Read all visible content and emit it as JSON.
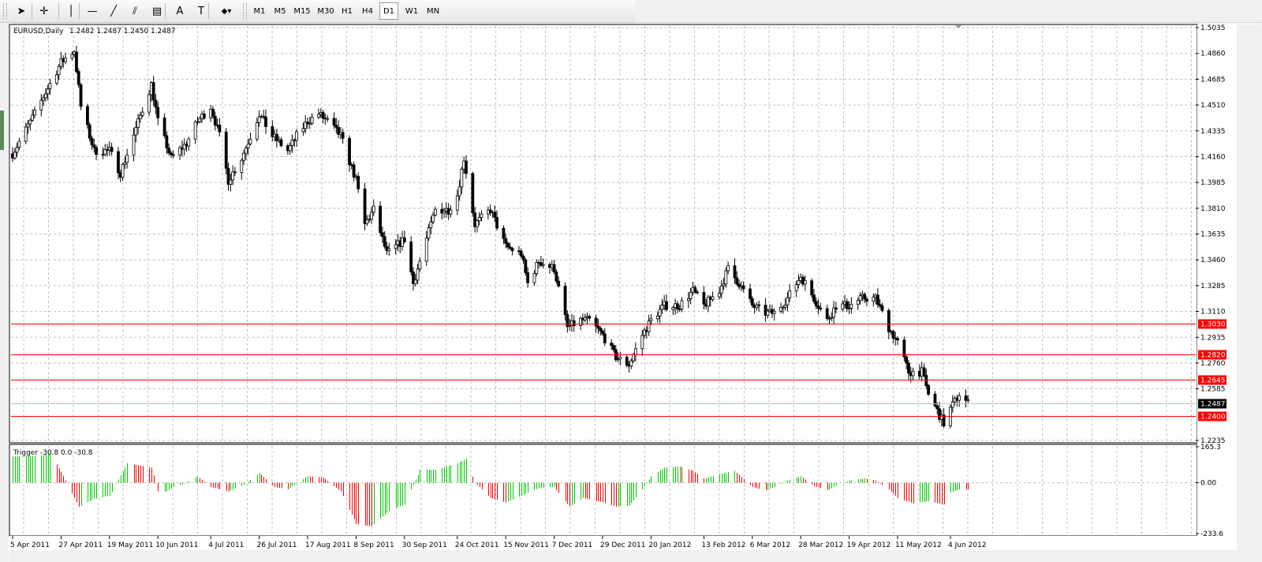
{
  "toolbar": {
    "tools": [
      {
        "name": "cursor-arrow-icon",
        "glyph": "➤"
      },
      {
        "name": "crosshair-icon",
        "glyph": "✛"
      },
      {
        "name": "vertical-line-icon",
        "glyph": "│"
      },
      {
        "name": "horizontal-line-icon",
        "glyph": "—"
      },
      {
        "name": "trendline-icon",
        "glyph": "╱"
      },
      {
        "name": "equidistant-channel-icon",
        "glyph": "⫽"
      },
      {
        "name": "fibonacci-icon",
        "glyph": "▤"
      },
      {
        "name": "text-icon",
        "glyph": "A"
      },
      {
        "name": "text-label-icon",
        "glyph": "T"
      },
      {
        "name": "shapes-dropdown-icon",
        "glyph": "◆▾"
      }
    ],
    "timeframes": [
      "M1",
      "M5",
      "M15",
      "M30",
      "H1",
      "H4",
      "D1",
      "W1",
      "MN"
    ],
    "active_timeframe": "D1"
  },
  "main_info": {
    "symbol": "EURUSD,Daily",
    "ohlc": "1.2482 1.2487 1.2450 1.2487"
  },
  "sub_info": {
    "label": "Trigger -30.8 0.0 -30.8"
  },
  "price_axis": [
    "1.5035",
    "1.4860",
    "1.4685",
    "1.4510",
    "1.4335",
    "1.4160",
    "1.3985",
    "1.3810",
    "1.3635",
    "1.3460",
    "1.3285",
    "1.3110",
    "1.2935",
    "1.2760",
    "1.2585",
    "1.2235"
  ],
  "level_lines": [
    {
      "label": "1.3030",
      "price": 1.303
    },
    {
      "label": "1.2820",
      "price": 1.282
    },
    {
      "label": "1.2645",
      "price": 1.2645
    },
    {
      "label": "1.2400",
      "price": 1.24
    }
  ],
  "current_price": {
    "label": "1.2487",
    "price": 1.2487
  },
  "indicator_axis": [
    "165.3",
    "0.00",
    "-233.6"
  ],
  "date_axis": [
    "5 Apr 2011",
    "27 Apr 2011",
    "19 May 2011",
    "10 Jun 2011",
    "4 Jul 2011",
    "26 Jul 2011",
    "17 Aug 2011",
    "8 Sep 2011",
    "30 Sep 2011",
    "24 Oct 2011",
    "15 Nov 2011",
    "7 Dec 2011",
    "29 Dec 2011",
    "20 Jan 2012",
    "13 Feb 2012",
    "6 Mar 2012",
    "28 Mar 2012",
    "19 Apr 2012",
    "11 May 2012",
    "4 Jun 2012"
  ],
  "colors": {
    "level_line": "#ff0000",
    "level_badge": "#ff0000",
    "current_badge": "#000000",
    "bull_histogram": "#00cc00",
    "bear_histogram": "#ff0000",
    "grid": "#c0c0c0",
    "candle": "#000000"
  },
  "chart_data": {
    "type": "line",
    "main": {
      "description_series": "EURUSD daily closes (approx.)",
      "anchor_closes": [
        [
          "5 Apr 2011",
          1.418
        ],
        [
          "15 Apr 2011",
          1.445
        ],
        [
          "27 Apr 2011",
          1.48
        ],
        [
          "3 May 2011",
          1.488
        ],
        [
          "6 May 2011",
          1.45
        ],
        [
          "12 May 2011",
          1.42
        ],
        [
          "19 May 2011",
          1.42
        ],
        [
          "24 May 2011",
          1.405
        ],
        [
          "31 May 2011",
          1.435
        ],
        [
          "7 Jun 2011",
          1.465
        ],
        [
          "10 Jun 2011",
          1.44
        ],
        [
          "16 Jun 2011",
          1.415
        ],
        [
          "23 Jun 2011",
          1.425
        ],
        [
          "28 Jun 2011",
          1.44
        ],
        [
          "4 Jul 2011",
          1.45
        ],
        [
          "8 Jul 2011",
          1.43
        ],
        [
          "12 Jul 2011",
          1.4
        ],
        [
          "18 Jul 2011",
          1.415
        ],
        [
          "26 Jul 2011",
          1.445
        ],
        [
          "1 Aug 2011",
          1.43
        ],
        [
          "8 Aug 2011",
          1.42
        ],
        [
          "12 Aug 2011",
          1.43
        ],
        [
          "17 Aug 2011",
          1.44
        ],
        [
          "22 Aug 2011",
          1.445
        ],
        [
          "26 Aug 2011",
          1.44
        ],
        [
          "1 Sep 2011",
          1.43
        ],
        [
          "8 Sep 2011",
          1.4
        ],
        [
          "12 Sep 2011",
          1.37
        ],
        [
          "16 Sep 2011",
          1.38
        ],
        [
          "22 Sep 2011",
          1.35
        ],
        [
          "30 Sep 2011",
          1.36
        ],
        [
          "4 Oct 2011",
          1.33
        ],
        [
          "10 Oct 2011",
          1.36
        ],
        [
          "14 Oct 2011",
          1.38
        ],
        [
          "20 Oct 2011",
          1.38
        ],
        [
          "24 Oct 2011",
          1.39
        ],
        [
          "27 Oct 2011",
          1.415
        ],
        [
          "1 Nov 2011",
          1.37
        ],
        [
          "8 Nov 2011",
          1.38
        ],
        [
          "15 Nov 2011",
          1.355
        ],
        [
          "22 Nov 2011",
          1.35
        ],
        [
          "25 Nov 2011",
          1.33
        ],
        [
          "30 Nov 2011",
          1.345
        ],
        [
          "7 Dec 2011",
          1.34
        ],
        [
          "13 Dec 2011",
          1.3
        ],
        [
          "19 Dec 2011",
          1.305
        ],
        [
          "23 Dec 2011",
          1.305
        ],
        [
          "29 Dec 2011",
          1.295
        ],
        [
          "4 Jan 2012",
          1.28
        ],
        [
          "10 Jan 2012",
          1.275
        ],
        [
          "16 Jan 2012",
          1.295
        ],
        [
          "20 Jan 2012",
          1.305
        ],
        [
          "26 Jan 2012",
          1.315
        ],
        [
          "2 Feb 2012",
          1.315
        ],
        [
          "8 Feb 2012",
          1.325
        ],
        [
          "13 Feb 2012",
          1.315
        ],
        [
          "20 Feb 2012",
          1.325
        ],
        [
          "24 Feb 2012",
          1.34
        ],
        [
          "29 Feb 2012",
          1.33
        ],
        [
          "6 Mar 2012",
          1.315
        ],
        [
          "12 Mar 2012",
          1.31
        ],
        [
          "16 Mar 2012",
          1.31
        ],
        [
          "22 Mar 2012",
          1.32
        ],
        [
          "28 Mar 2012",
          1.335
        ],
        [
          "3 Apr 2012",
          1.32
        ],
        [
          "9 Apr 2012",
          1.305
        ],
        [
          "13 Apr 2012",
          1.315
        ],
        [
          "19 Apr 2012",
          1.315
        ],
        [
          "25 Apr 2012",
          1.32
        ],
        [
          "1 May 2012",
          1.32
        ],
        [
          "7 May 2012",
          1.3
        ],
        [
          "11 May 2012",
          1.29
        ],
        [
          "16 May 2012",
          1.27
        ],
        [
          "22 May 2012",
          1.27
        ],
        [
          "25 May 2012",
          1.255
        ],
        [
          "1 Jun 2012",
          1.235
        ],
        [
          "4 Jun 2012",
          1.245
        ],
        [
          "8 Jun 2012",
          1.255
        ],
        [
          "12 Jun 2012",
          1.2487
        ]
      ],
      "ylim": [
        1.2235,
        1.5035
      ]
    },
    "indicator": {
      "name": "Trigger",
      "ylim": [
        -233.6,
        165.3
      ],
      "anchor_values": [
        [
          "5 Apr 2011",
          120
        ],
        [
          "18 Apr 2011",
          125
        ],
        [
          "22 Apr 2011",
          135
        ],
        [
          "27 Apr 2011",
          50
        ],
        [
          "5 May 2011",
          -110
        ],
        [
          "12 May 2011",
          -75
        ],
        [
          "19 May 2011",
          -60
        ],
        [
          "27 May 2011",
          90
        ],
        [
          "7 Jun 2011",
          70
        ],
        [
          "10 Jun 2011",
          -40
        ],
        [
          "14 Jun 2011",
          -40
        ],
        [
          "17 Jun 2011",
          -20
        ],
        [
          "23 Jun 2011",
          0
        ],
        [
          "28 Jun 2011",
          30
        ],
        [
          "4 Jul 2011",
          -20
        ],
        [
          "12 Jul 2011",
          -40
        ],
        [
          "19 Jul 2011",
          -10
        ],
        [
          "26 Jul 2011",
          45
        ],
        [
          "2 Aug 2011",
          -20
        ],
        [
          "8 Aug 2011",
          -30
        ],
        [
          "17 Aug 2011",
          30
        ],
        [
          "24 Aug 2011",
          25
        ],
        [
          "1 Sep 2011",
          -40
        ],
        [
          "8 Sep 2011",
          -190
        ],
        [
          "15 Sep 2011",
          -200
        ],
        [
          "23 Sep 2011",
          -130
        ],
        [
          "30 Sep 2011",
          -100
        ],
        [
          "7 Oct 2011",
          60
        ],
        [
          "14 Oct 2011",
          60
        ],
        [
          "24 Oct 2011",
          90
        ],
        [
          "28 Oct 2011",
          110
        ],
        [
          "1 Nov 2011",
          0
        ],
        [
          "8 Nov 2011",
          -70
        ],
        [
          "15 Nov 2011",
          -90
        ],
        [
          "22 Nov 2011",
          -60
        ],
        [
          "30 Nov 2011",
          -25
        ],
        [
          "7 Dec 2011",
          -20
        ],
        [
          "14 Dec 2011",
          -110
        ],
        [
          "20 Dec 2011",
          -70
        ],
        [
          "29 Dec 2011",
          -90
        ],
        [
          "4 Jan 2012",
          -110
        ],
        [
          "10 Jan 2012",
          -105
        ],
        [
          "16 Jan 2012",
          -30
        ],
        [
          "20 Jan 2012",
          30
        ],
        [
          "26 Jan 2012",
          70
        ],
        [
          "2 Feb 2012",
          75
        ],
        [
          "8 Feb 2012",
          55
        ],
        [
          "13 Feb 2012",
          20
        ],
        [
          "20 Feb 2012",
          40
        ],
        [
          "27 Feb 2012",
          55
        ],
        [
          "6 Mar 2012",
          -20
        ],
        [
          "12 Mar 2012",
          -35
        ],
        [
          "16 Mar 2012",
          -20
        ],
        [
          "22 Mar 2012",
          10
        ],
        [
          "28 Mar 2012",
          30
        ],
        [
          "3 Apr 2012",
          -15
        ],
        [
          "9 Apr 2012",
          -35
        ],
        [
          "13 Apr 2012",
          -15
        ],
        [
          "19 Apr 2012",
          10
        ],
        [
          "26 Apr 2012",
          20
        ],
        [
          "1 May 2012",
          10
        ],
        [
          "7 May 2012",
          -30
        ],
        [
          "11 May 2012",
          -70
        ],
        [
          "18 May 2012",
          -95
        ],
        [
          "25 May 2012",
          -85
        ],
        [
          "1 Jun 2012",
          -100
        ],
        [
          "4 Jun 2012",
          -45
        ],
        [
          "8 Jun 2012",
          -30
        ],
        [
          "12 Jun 2012",
          -30.8
        ]
      ]
    },
    "xlabels": [
      "5 Apr 2011",
      "27 Apr 2011",
      "19 May 2011",
      "10 Jun 2011",
      "4 Jul 2011",
      "26 Jul 2011",
      "17 Aug 2011",
      "8 Sep 2011",
      "30 Sep 2011",
      "24 Oct 2011",
      "15 Nov 2011",
      "7 Dec 2011",
      "29 Dec 2011",
      "20 Jan 2012",
      "13 Feb 2012",
      "6 Mar 2012",
      "28 Mar 2012",
      "19 Apr 2012",
      "11 May 2012",
      "4 Jun 2012"
    ]
  }
}
